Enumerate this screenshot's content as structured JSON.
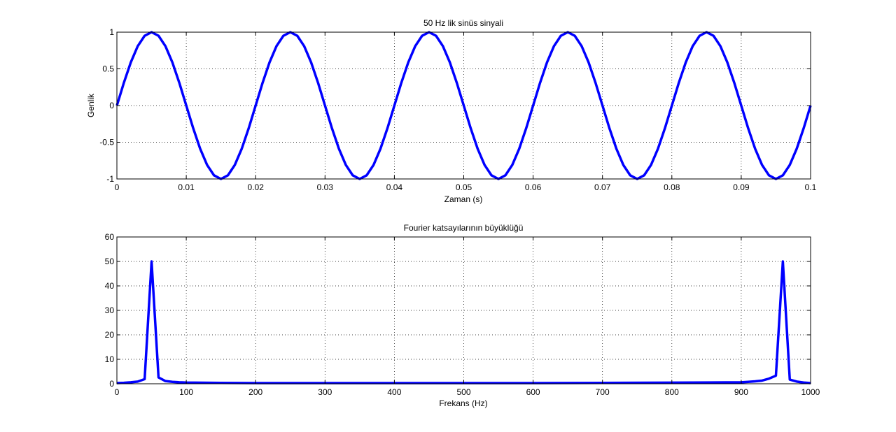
{
  "chart_data": [
    {
      "type": "line",
      "title": "50 Hz lik sinüs sinyali",
      "xlabel": "Zaman (s)",
      "ylabel": "Genlik",
      "xlim": [
        0,
        0.1
      ],
      "ylim": [
        -1,
        1
      ],
      "xticks": [
        "0",
        "0.01",
        "0.02",
        "0.03",
        "0.04",
        "0.05",
        "0.06",
        "0.07",
        "0.08",
        "0.09",
        "0.1"
      ],
      "yticks": [
        "-1",
        "-0.5",
        "0",
        "0.5",
        "1"
      ],
      "grid": true,
      "line_color": "#0000ff",
      "series": [
        {
          "function": "sin(2*pi*50*t)",
          "frequency_hz": 50,
          "amplitude": 1,
          "x_start": 0,
          "x_end": 0.1,
          "sample_step": 0.001
        }
      ]
    },
    {
      "type": "line",
      "title": "Fourier katsayılarının büyüklüğü",
      "xlabel": "Frekans (Hz)",
      "ylabel": "",
      "xlim": [
        0,
        1000
      ],
      "ylim": [
        0,
        60
      ],
      "xticks": [
        "0",
        "100",
        "200",
        "300",
        "400",
        "500",
        "600",
        "700",
        "800",
        "900",
        "1000"
      ],
      "yticks": [
        "0",
        "10",
        "20",
        "30",
        "40",
        "50",
        "60"
      ],
      "grid": true,
      "line_color": "#0000ff",
      "series": [
        {
          "x": [
            0,
            10,
            20,
            30,
            40,
            50,
            60,
            70,
            80,
            90,
            100,
            150,
            200,
            300,
            400,
            500,
            600,
            700,
            800,
            900,
            910,
            920,
            930,
            940,
            950,
            960,
            970,
            980,
            990,
            1000
          ],
          "y": [
            0.3,
            0.4,
            0.6,
            0.9,
            1.9,
            50,
            2.6,
            1.1,
            0.8,
            0.6,
            0.5,
            0.35,
            0.3,
            0.3,
            0.3,
            0.3,
            0.3,
            0.35,
            0.45,
            0.6,
            0.8,
            1.0,
            1.3,
            2.1,
            3.3,
            50,
            1.7,
            0.9,
            0.5,
            0.3
          ]
        }
      ]
    }
  ]
}
